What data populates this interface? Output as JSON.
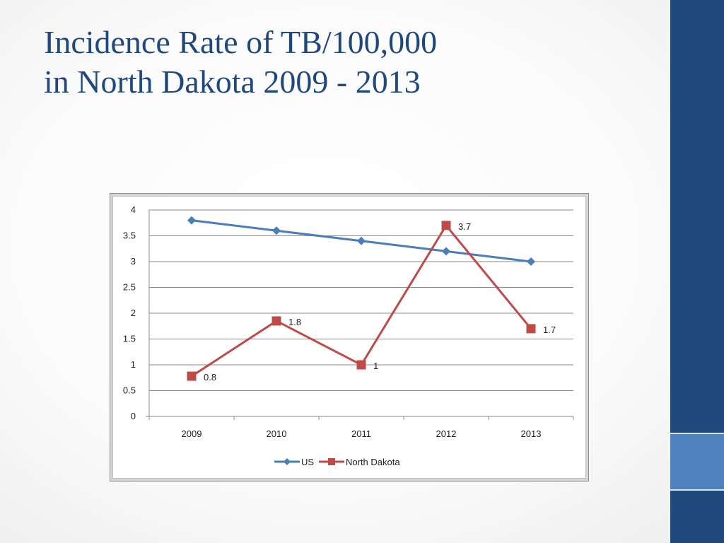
{
  "slide": {
    "title_line1": "Incidence Rate of TB/100,000",
    "title_line2": "in North Dakota 2009 - 2013"
  },
  "chart_data": {
    "type": "line",
    "categories": [
      "2009",
      "2010",
      "2011",
      "2012",
      "2013"
    ],
    "y_ticks": [
      "0",
      "0.5",
      "1",
      "1.5",
      "2",
      "2.5",
      "3",
      "3.5",
      "4"
    ],
    "ylim": [
      0,
      4
    ],
    "grid": true,
    "legend_position": "bottom",
    "series": [
      {
        "name": "US",
        "values": [
          3.8,
          3.6,
          3.4,
          3.2,
          3.0
        ],
        "color": "#4a7ebb",
        "marker": "diamond",
        "labels": []
      },
      {
        "name": "North Dakota",
        "values": [
          0.78,
          1.85,
          1.0,
          3.7,
          1.7
        ],
        "color": "#be4b48",
        "marker": "square",
        "labels": [
          "0.8",
          "1.8",
          "1",
          "3.7",
          "1.7"
        ]
      }
    ]
  },
  "colors": {
    "title": "#1f497d",
    "sidebar": "#1f497d",
    "sidebar_accent": "#4f81bd"
  }
}
